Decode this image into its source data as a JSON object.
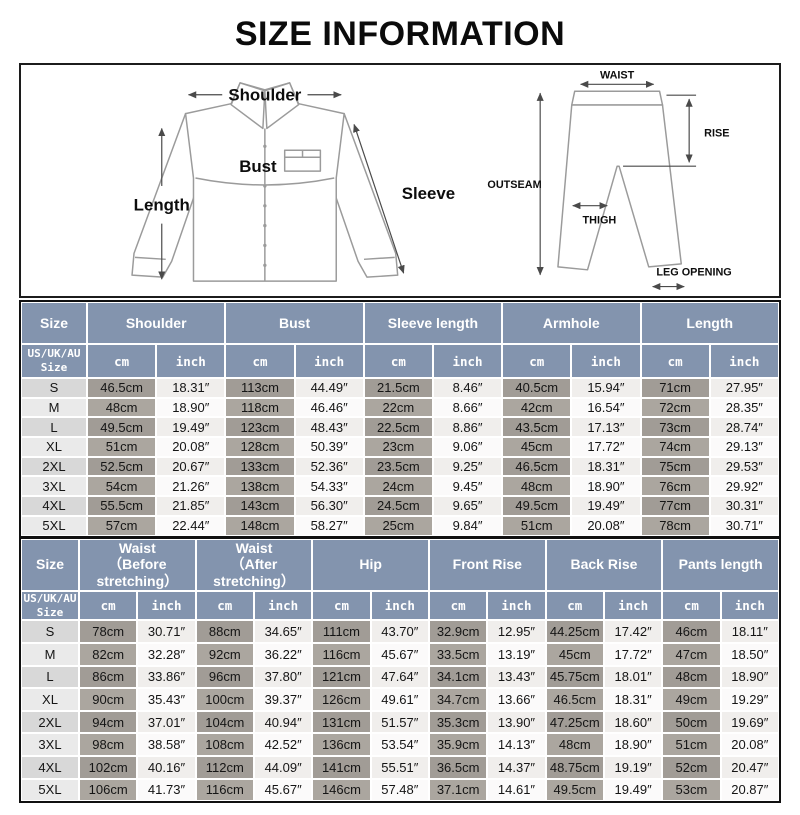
{
  "title": "SIZE INFORMATION",
  "colors": {
    "header_bg": "#8394ae",
    "cm_cell_odd": "#a19c96",
    "cm_cell_even": "#aba69f",
    "size_cell_odd": "#d8d8d8",
    "size_cell_even": "#eaeaea",
    "inch_cell_odd": "#f0eeec",
    "inch_cell_even": "#fbfafa",
    "title_color": "#0b0b0b"
  },
  "diagram": {
    "shirt": {
      "shoulder": "Shoulder",
      "length": "Length",
      "bust": "Bust",
      "sleeve": "Sleeve"
    },
    "pants": {
      "waist": "WAIST",
      "rise": "RISE",
      "outseam": "OUTSEAM",
      "thigh": "THIGH",
      "leg_opening": "LEG OPENING"
    }
  },
  "tables": [
    {
      "corner": "Size",
      "sub_corner": "US/UK/AU\nSize",
      "unit_cm": "cm",
      "unit_inch": "inch",
      "groups": [
        "Shoulder",
        "Bust",
        "Sleeve length",
        "Armhole",
        "Length"
      ],
      "rows": [
        {
          "size": "S",
          "values": [
            "46.5cm",
            "18.31″",
            "113cm",
            "44.49″",
            "21.5cm",
            "8.46″",
            "40.5cm",
            "15.94″",
            "71cm",
            "27.95″"
          ]
        },
        {
          "size": "M",
          "values": [
            "48cm",
            "18.90″",
            "118cm",
            "46.46″",
            "22cm",
            "8.66″",
            "42cm",
            "16.54″",
            "72cm",
            "28.35″"
          ]
        },
        {
          "size": "L",
          "values": [
            "49.5cm",
            "19.49″",
            "123cm",
            "48.43″",
            "22.5cm",
            "8.86″",
            "43.5cm",
            "17.13″",
            "73cm",
            "28.74″"
          ]
        },
        {
          "size": "XL",
          "values": [
            "51cm",
            "20.08″",
            "128cm",
            "50.39″",
            "23cm",
            "9.06″",
            "45cm",
            "17.72″",
            "74cm",
            "29.13″"
          ]
        },
        {
          "size": "2XL",
          "values": [
            "52.5cm",
            "20.67″",
            "133cm",
            "52.36″",
            "23.5cm",
            "9.25″",
            "46.5cm",
            "18.31″",
            "75cm",
            "29.53″"
          ]
        },
        {
          "size": "3XL",
          "values": [
            "54cm",
            "21.26″",
            "138cm",
            "54.33″",
            "24cm",
            "9.45″",
            "48cm",
            "18.90″",
            "76cm",
            "29.92″"
          ]
        },
        {
          "size": "4XL",
          "values": [
            "55.5cm",
            "21.85″",
            "143cm",
            "56.30″",
            "24.5cm",
            "9.65″",
            "49.5cm",
            "19.49″",
            "77cm",
            "30.31″"
          ]
        },
        {
          "size": "5XL",
          "values": [
            "57cm",
            "22.44″",
            "148cm",
            "58.27″",
            "25cm",
            "9.84″",
            "51cm",
            "20.08″",
            "78cm",
            "30.71″"
          ]
        }
      ]
    },
    {
      "corner": "Size",
      "sub_corner": "US/UK/AU\nSize",
      "unit_cm": "cm",
      "unit_inch": "inch",
      "groups": [
        "Waist\n（Before stretching）",
        "Waist\n（After stretching）",
        "Hip",
        "Front Rise",
        "Back Rise",
        "Pants length"
      ],
      "rows": [
        {
          "size": "S",
          "values": [
            "78cm",
            "30.71″",
            "88cm",
            "34.65″",
            "111cm",
            "43.70″",
            "32.9cm",
            "12.95″",
            "44.25cm",
            "17.42″",
            "46cm",
            "18.11″"
          ]
        },
        {
          "size": "M",
          "values": [
            "82cm",
            "32.28″",
            "92cm",
            "36.22″",
            "116cm",
            "45.67″",
            "33.5cm",
            "13.19″",
            "45cm",
            "17.72″",
            "47cm",
            "18.50″"
          ]
        },
        {
          "size": "L",
          "values": [
            "86cm",
            "33.86″",
            "96cm",
            "37.80″",
            "121cm",
            "47.64″",
            "34.1cm",
            "13.43″",
            "45.75cm",
            "18.01″",
            "48cm",
            "18.90″"
          ]
        },
        {
          "size": "XL",
          "values": [
            "90cm",
            "35.43″",
            "100cm",
            "39.37″",
            "126cm",
            "49.61″",
            "34.7cm",
            "13.66″",
            "46.5cm",
            "18.31″",
            "49cm",
            "19.29″"
          ]
        },
        {
          "size": "2XL",
          "values": [
            "94cm",
            "37.01″",
            "104cm",
            "40.94″",
            "131cm",
            "51.57″",
            "35.3cm",
            "13.90″",
            "47.25cm",
            "18.60″",
            "50cm",
            "19.69″"
          ]
        },
        {
          "size": "3XL",
          "values": [
            "98cm",
            "38.58″",
            "108cm",
            "42.52″",
            "136cm",
            "53.54″",
            "35.9cm",
            "14.13″",
            "48cm",
            "18.90″",
            "51cm",
            "20.08″"
          ]
        },
        {
          "size": "4XL",
          "values": [
            "102cm",
            "40.16″",
            "112cm",
            "44.09″",
            "141cm",
            "55.51″",
            "36.5cm",
            "14.37″",
            "48.75cm",
            "19.19″",
            "52cm",
            "20.47″"
          ]
        },
        {
          "size": "5XL",
          "values": [
            "106cm",
            "41.73″",
            "116cm",
            "45.67″",
            "146cm",
            "57.48″",
            "37.1cm",
            "14.61″",
            "49.5cm",
            "19.49″",
            "53cm",
            "20.87″"
          ]
        }
      ]
    }
  ]
}
